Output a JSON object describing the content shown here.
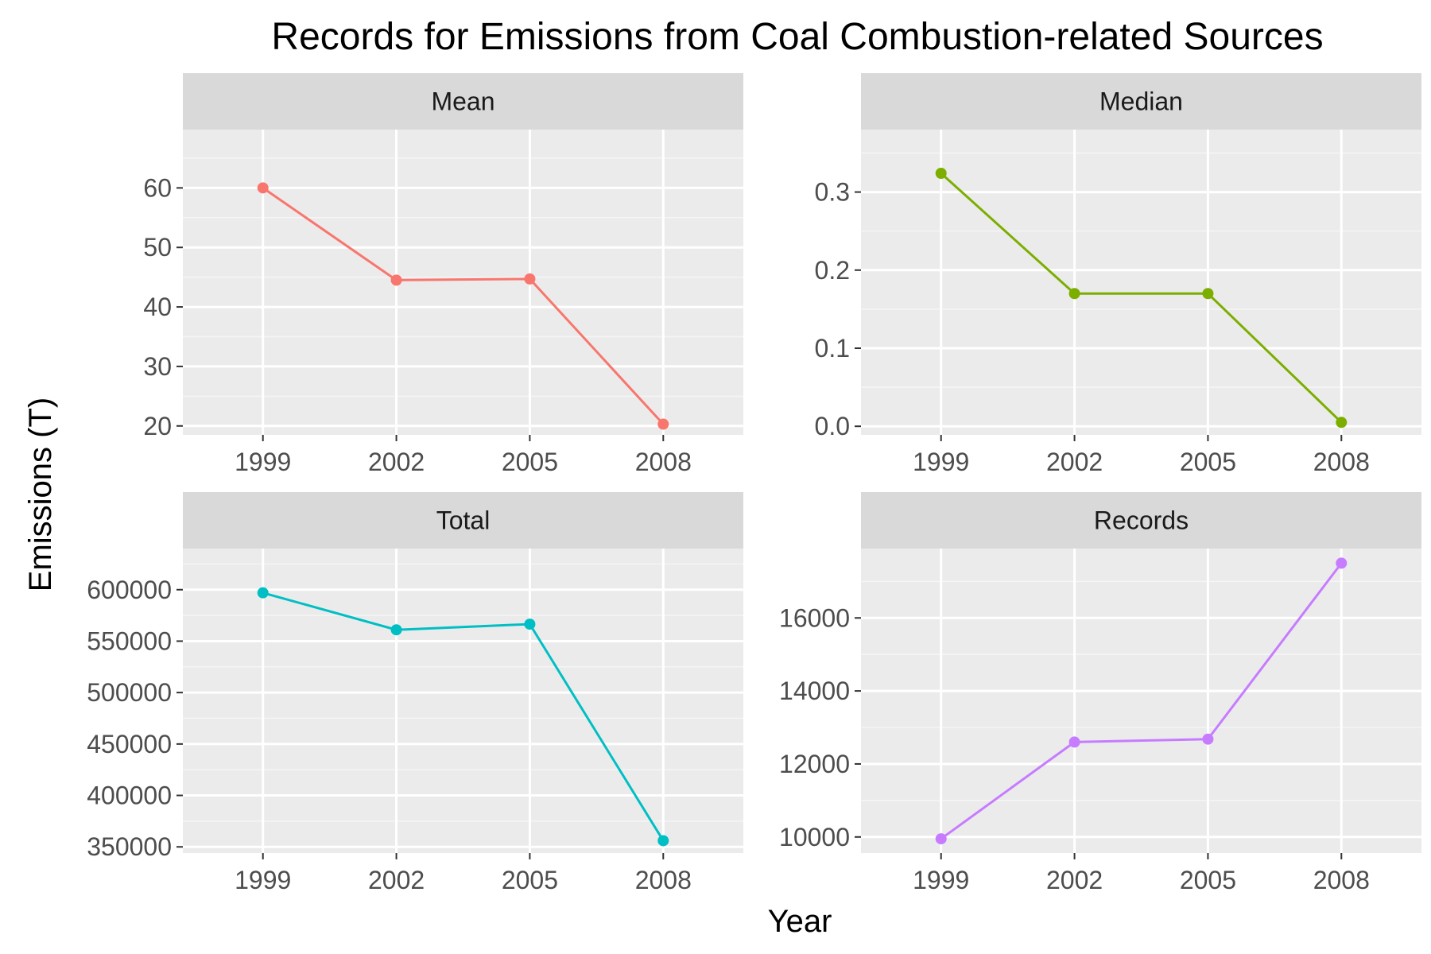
{
  "title": "Records for Emissions from Coal Combustion-related Sources",
  "xlabel": "Year",
  "ylabel": "Emissions (T)",
  "chart_data": [
    {
      "type": "line",
      "facet": "Mean",
      "x": [
        1999,
        2002,
        2005,
        2008
      ],
      "series": [
        {
          "values": [
            60.0,
            44.5,
            44.7,
            20.3
          ],
          "color": "#F8766D"
        }
      ],
      "xticks": [
        "1999",
        "2002",
        "2005",
        "2008"
      ],
      "yticks": [
        20,
        30,
        40,
        50,
        60
      ],
      "ylim": [
        18.5,
        69.8
      ],
      "grid": true
    },
    {
      "type": "line",
      "facet": "Median",
      "x": [
        1999,
        2002,
        2005,
        2008
      ],
      "series": [
        {
          "values": [
            0.324,
            0.17,
            0.17,
            0.005
          ],
          "color": "#7CAE00"
        }
      ],
      "xticks": [
        "1999",
        "2002",
        "2005",
        "2008"
      ],
      "yticks": [
        0.0,
        0.1,
        0.2,
        0.3
      ],
      "ylim": [
        -0.011,
        0.38
      ],
      "grid": true
    },
    {
      "type": "line",
      "facet": "Total",
      "x": [
        1999,
        2002,
        2005,
        2008
      ],
      "series": [
        {
          "values": [
            597000,
            561000,
            566500,
            356000
          ],
          "color": "#00BFC4"
        }
      ],
      "xticks": [
        "1999",
        "2002",
        "2005",
        "2008"
      ],
      "yticks": [
        350000,
        400000,
        450000,
        500000,
        550000,
        600000
      ],
      "ylim": [
        344000,
        640000
      ],
      "grid": true
    },
    {
      "type": "line",
      "facet": "Records",
      "x": [
        1999,
        2002,
        2005,
        2008
      ],
      "series": [
        {
          "values": [
            9950,
            12600,
            12680,
            17500
          ],
          "color": "#C77CFF"
        }
      ],
      "xticks": [
        "1999",
        "2002",
        "2005",
        "2008"
      ],
      "yticks": [
        10000,
        12000,
        14000,
        16000
      ],
      "ylim": [
        9560,
        17900
      ],
      "grid": true
    }
  ],
  "colors": {
    "panel_bg": "#EBEBEB",
    "strip_bg": "#D9D9D9",
    "grid_major": "#FFFFFF",
    "grid_minor": "#F5F5F5",
    "tick_text": "#4D4D4D",
    "tick_mark": "#333333"
  }
}
